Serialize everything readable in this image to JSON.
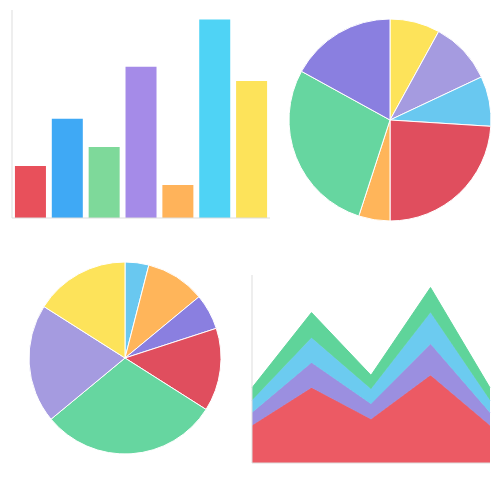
{
  "chart_data": [
    {
      "type": "bar",
      "categories": [
        null,
        null,
        null,
        null,
        null,
        null,
        null
      ],
      "values": [
        55,
        105,
        75,
        160,
        35,
        210,
        145
      ],
      "colors": [
        "#e8505b",
        "#3fa9f5",
        "#7ed99a",
        "#a58be8",
        "#ffb35a",
        "#4fd3f5",
        "#fde35a"
      ],
      "ylim": [
        0,
        220
      ],
      "tick_labels": false
    },
    {
      "type": "pie",
      "values": [
        8,
        10,
        8,
        24,
        5,
        28,
        17
      ],
      "colors": [
        "#fde35a",
        "#a59be0",
        "#69c8f0",
        "#e04e5e",
        "#ffb55a",
        "#66d6a0",
        "#8a7fe0"
      ]
    },
    {
      "type": "pie",
      "values": [
        4,
        10,
        6,
        14,
        30,
        20,
        16
      ],
      "colors": [
        "#69c8f0",
        "#ffb55a",
        "#8a7fe0",
        "#e04e5e",
        "#66d6a0",
        "#a59be0",
        "#fde35a"
      ]
    },
    {
      "type": "area",
      "categories": [
        null,
        null,
        null,
        null,
        null
      ],
      "stacked": true,
      "ylim": [
        0,
        150
      ],
      "tick_labels": false,
      "series": [
        {
          "color": "#ec5a64",
          "values": [
            30,
            60,
            35,
            70,
            30
          ]
        },
        {
          "color": "#9b8fe0",
          "values": [
            10,
            20,
            12,
            25,
            10
          ]
        },
        {
          "color": "#6ccbf0",
          "values": [
            10,
            20,
            12,
            25,
            10
          ]
        },
        {
          "color": "#5fd49a",
          "values": [
            10,
            20,
            11,
            20,
            10
          ]
        }
      ]
    }
  ]
}
